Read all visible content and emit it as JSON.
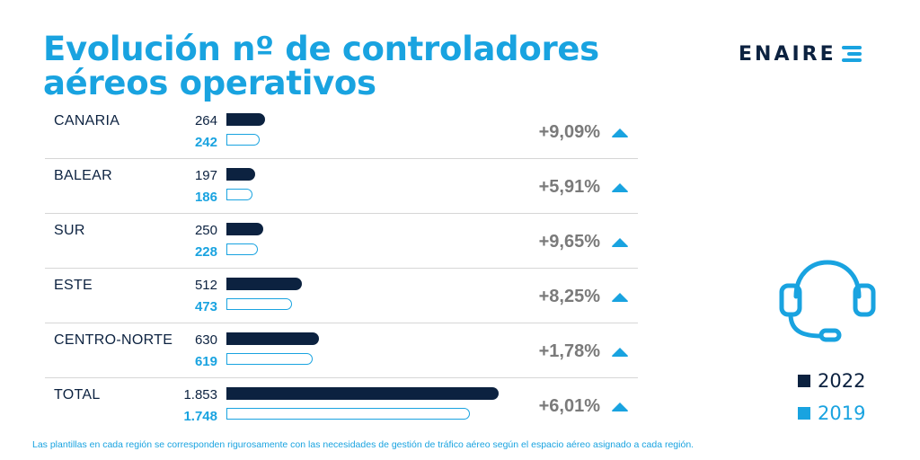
{
  "title": "Evolución nº de controladores aéreos operativos",
  "logo_text": "ENAIRE",
  "colors": {
    "y2022": "#0c2240",
    "y2019": "#19a3e0",
    "pct": "#7a7a7a"
  },
  "chart_data": {
    "type": "bar",
    "orientation": "horizontal",
    "categories": [
      "CANARIA",
      "BALEAR",
      "SUR",
      "ESTE",
      "CENTRO-NORTE",
      "TOTAL"
    ],
    "series": [
      {
        "name": "2022",
        "values": [
          264,
          197,
          250,
          512,
          630,
          1853
        ],
        "labels": [
          "264",
          "197",
          "250",
          "512",
          "630",
          "1.853"
        ]
      },
      {
        "name": "2019",
        "values": [
          242,
          186,
          228,
          473,
          619,
          1748
        ],
        "labels": [
          "242",
          "186",
          "228",
          "473",
          "619",
          "1.748"
        ]
      }
    ],
    "changes": [
      "+9,09%",
      "+5,91%",
      "+9,65%",
      "+8,25%",
      "+1,78%",
      "+6,01%"
    ],
    "trend_icon": "up-arrow-icon"
  },
  "legend": [
    {
      "label": "2022",
      "color": "#0c2240"
    },
    {
      "label": "2019",
      "color": "#19a3e0"
    }
  ],
  "decoration_icon": "headset-icon",
  "footnote": "Las plantillas en cada región se corresponden rigurosamente con las necesidades de gestión de tráfico aéreo según el espacio aéreo asignado a cada región."
}
